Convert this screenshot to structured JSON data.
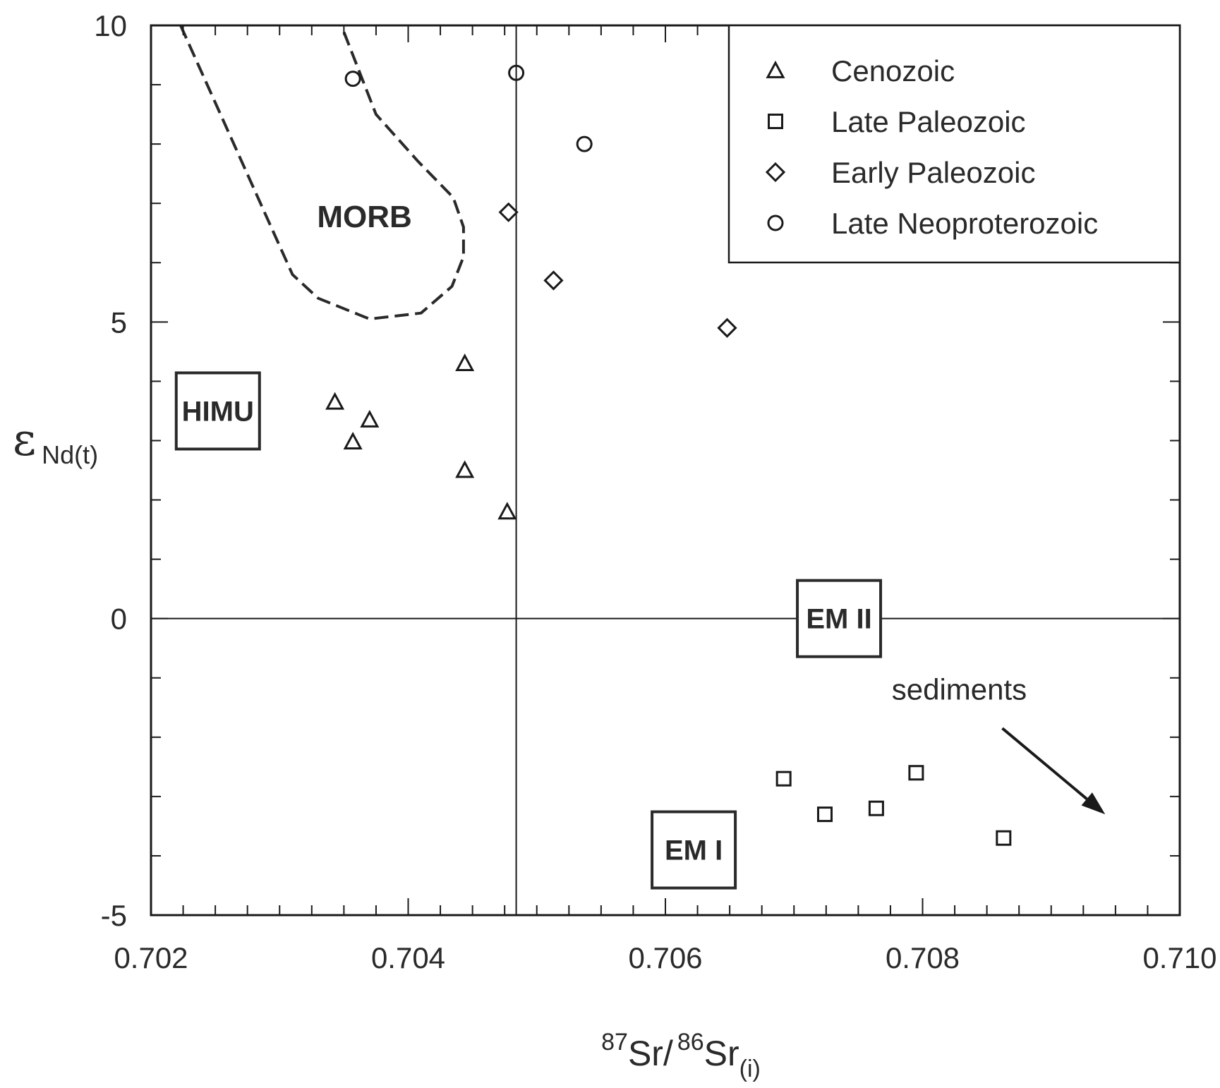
{
  "chart_data": {
    "type": "scatter",
    "title": "",
    "xlim": [
      0.702,
      0.71
    ],
    "ylim": [
      -5,
      10
    ],
    "x_ticks": [
      "0.702",
      "0.704",
      "0.706",
      "0.708",
      "0.710"
    ],
    "y_ticks": [
      "-5",
      "0",
      "5",
      "10"
    ],
    "xlabel": {
      "iso1": "87",
      "element1": "Sr/",
      "iso2": "86",
      "element2": "Sr",
      "sub": "(i)"
    },
    "ylabel": {
      "symbol": "ε",
      "sub": "Nd(t)"
    },
    "legend_position": "top-right",
    "series": [
      {
        "name": "Cenozoic",
        "marker": "triangle",
        "points": [
          [
            0.70343,
            3.65
          ],
          [
            0.70357,
            2.98
          ],
          [
            0.7037,
            3.35
          ],
          [
            0.70444,
            4.3
          ],
          [
            0.70444,
            2.5
          ],
          [
            0.70477,
            1.8
          ]
        ]
      },
      {
        "name": "Late Paleozoic",
        "marker": "square",
        "points": [
          [
            0.70692,
            -2.7
          ],
          [
            0.70724,
            -3.3
          ],
          [
            0.70764,
            -3.2
          ],
          [
            0.70795,
            -2.6
          ],
          [
            0.70863,
            -3.7
          ]
        ]
      },
      {
        "name": "Early Paleozoic",
        "marker": "diamond",
        "points": [
          [
            0.70478,
            6.85
          ],
          [
            0.70513,
            5.7
          ],
          [
            0.70648,
            4.9
          ]
        ]
      },
      {
        "name": "Late Neoproterozoic",
        "marker": "circle",
        "points": [
          [
            0.70357,
            9.1
          ],
          [
            0.70484,
            9.2
          ],
          [
            0.70537,
            8.0
          ]
        ]
      }
    ],
    "reference_lines": {
      "x": 0.70484,
      "y": 0
    },
    "morb_field": {
      "label": "MORB",
      "outline": [
        [
          0.70223,
          10
        ],
        [
          0.7031,
          5.8
        ],
        [
          0.7033,
          5.4
        ],
        [
          0.7037,
          5.05
        ],
        [
          0.7041,
          5.15
        ],
        [
          0.70434,
          5.6
        ],
        [
          0.70443,
          6.1
        ],
        [
          0.70443,
          6.6
        ],
        [
          0.70435,
          7.1
        ],
        [
          0.70408,
          7.7
        ],
        [
          0.70375,
          8.5
        ],
        [
          0.70348,
          10
        ]
      ]
    },
    "regions": [
      {
        "label": "HIMU",
        "x": 0.70252,
        "y": 3.5
      },
      {
        "label": "EM II",
        "x": 0.70735,
        "y": 0
      },
      {
        "label": "EM I",
        "x": 0.70622,
        "y": -3.9
      }
    ],
    "annotations": [
      {
        "text": "sediments",
        "x": 0.70776,
        "y": -1.2,
        "arrow_from": [
          0.70862,
          -1.85
        ],
        "arrow_to": [
          0.70942,
          -3.3
        ]
      }
    ]
  }
}
